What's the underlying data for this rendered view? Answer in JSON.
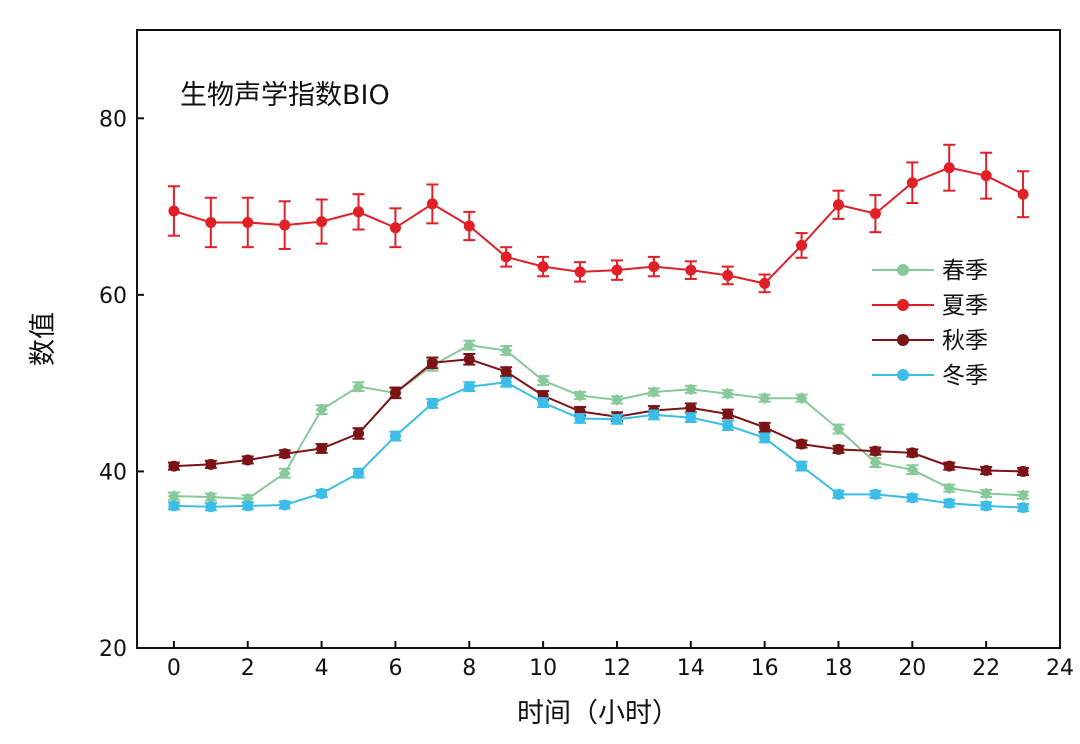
{
  "chart_data": {
    "type": "line",
    "title": "生物声学指数BIO",
    "xlabel": "时间（小时）",
    "ylabel": "数值",
    "xlim": [
      -1,
      24
    ],
    "ylim": [
      20,
      90
    ],
    "xticks": [
      0,
      2,
      4,
      6,
      8,
      10,
      12,
      14,
      16,
      18,
      20,
      22,
      24
    ],
    "yticks": [
      20,
      40,
      60,
      80
    ],
    "grid": false,
    "legend_position": "center-right",
    "x": [
      0,
      1,
      2,
      3,
      4,
      5,
      6,
      7,
      8,
      9,
      10,
      11,
      12,
      13,
      14,
      15,
      16,
      17,
      18,
      19,
      20,
      21,
      22,
      23
    ],
    "series": [
      {
        "name": "春季",
        "color": "#88c99a",
        "marker": "diamond",
        "values": [
          37.2,
          37.1,
          36.9,
          39.8,
          47.0,
          49.6,
          48.9,
          52.0,
          54.3,
          53.7,
          50.3,
          48.6,
          48.1,
          49.0,
          49.3,
          48.8,
          48.3,
          48.3,
          44.8,
          41.0,
          40.2,
          38.1,
          37.5,
          37.3
        ],
        "errors": [
          0.4,
          0.4,
          0.4,
          0.5,
          0.5,
          0.5,
          0.5,
          0.6,
          0.5,
          0.5,
          0.5,
          0.4,
          0.4,
          0.4,
          0.4,
          0.4,
          0.4,
          0.4,
          0.5,
          0.5,
          0.5,
          0.4,
          0.4,
          0.4
        ]
      },
      {
        "name": "夏季",
        "color": "#e01f26",
        "marker": "circle",
        "values": [
          69.5,
          68.2,
          68.2,
          67.9,
          68.3,
          69.4,
          67.6,
          70.3,
          67.8,
          64.3,
          63.2,
          62.6,
          62.8,
          63.2,
          62.8,
          62.2,
          61.3,
          65.6,
          70.2,
          69.2,
          72.7,
          74.4,
          73.5,
          71.4
        ],
        "errors": [
          2.8,
          2.8,
          2.8,
          2.7,
          2.5,
          2.0,
          2.2,
          2.2,
          1.6,
          1.1,
          1.1,
          1.1,
          1.1,
          1.1,
          1.0,
          1.0,
          1.0,
          1.4,
          1.6,
          2.1,
          2.3,
          2.6,
          2.6,
          2.6
        ]
      },
      {
        "name": "秋季",
        "color": "#7b1416",
        "marker": "circle",
        "values": [
          40.6,
          40.8,
          41.3,
          42.0,
          42.6,
          44.3,
          48.9,
          52.3,
          52.7,
          51.3,
          48.6,
          46.8,
          46.2,
          46.9,
          47.2,
          46.5,
          45.0,
          43.1,
          42.5,
          42.3,
          42.1,
          40.6,
          40.1,
          40.0
        ],
        "errors": [
          0.4,
          0.4,
          0.4,
          0.4,
          0.5,
          0.6,
          0.6,
          0.6,
          0.6,
          0.5,
          0.5,
          0.5,
          0.5,
          0.5,
          0.5,
          0.5,
          0.5,
          0.4,
          0.4,
          0.4,
          0.4,
          0.4,
          0.4,
          0.4
        ]
      },
      {
        "name": "冬季",
        "color": "#3cbde8",
        "marker": "circle",
        "values": [
          36.1,
          36.0,
          36.1,
          36.2,
          37.5,
          39.8,
          44.0,
          47.7,
          49.6,
          50.1,
          47.8,
          46.0,
          45.9,
          46.4,
          46.1,
          45.2,
          43.8,
          40.6,
          37.4,
          37.4,
          37.0,
          36.4,
          36.1,
          35.9
        ],
        "errors": [
          0.4,
          0.4,
          0.4,
          0.4,
          0.4,
          0.5,
          0.5,
          0.5,
          0.5,
          0.5,
          0.5,
          0.5,
          0.5,
          0.5,
          0.5,
          0.5,
          0.5,
          0.5,
          0.4,
          0.4,
          0.4,
          0.4,
          0.4,
          0.4
        ]
      }
    ]
  }
}
